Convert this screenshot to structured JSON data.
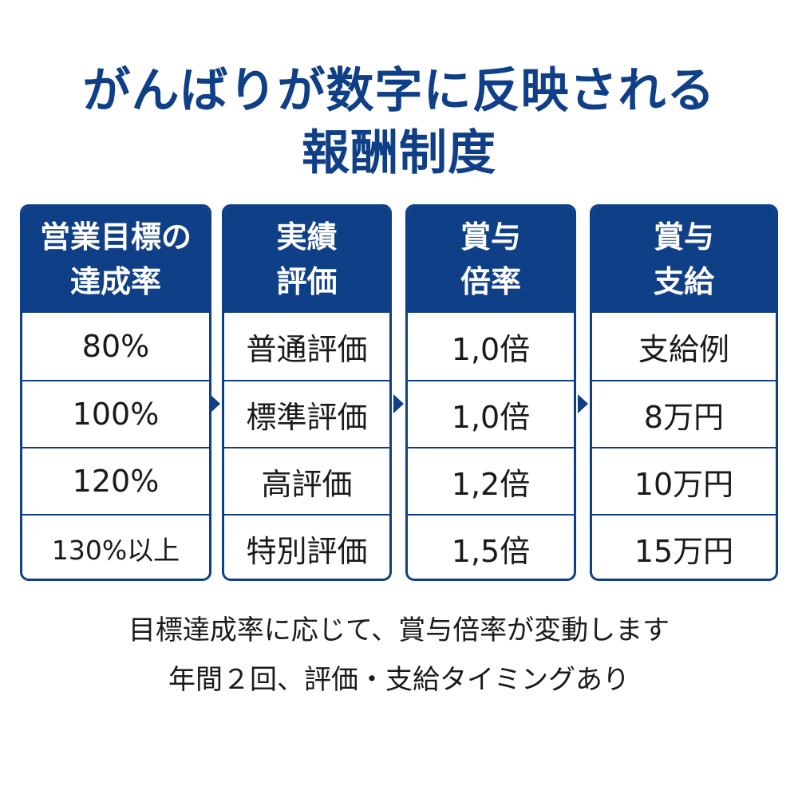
{
  "title": {
    "line1": "がんばりが数字に反映される",
    "line2": "報酬制度"
  },
  "columns": [
    {
      "header": "営業目標の\n達成率",
      "cells": [
        "80%",
        "100%",
        "120%",
        "130%以上"
      ]
    },
    {
      "header": "実績\n評価",
      "cells": [
        "普通評価",
        "標準評価",
        "高評価",
        "特別評価"
      ]
    },
    {
      "header": "賞与\n倍率",
      "cells": [
        "1,0倍",
        "1,0倍",
        "1,2倍",
        "1,5倍"
      ]
    },
    {
      "header": "賞与\n支給",
      "cells": [
        "支給例",
        "8万円",
        "10万円",
        "15万円"
      ]
    }
  ],
  "notes": [
    "目標達成率に応じて、賞与倍率が変動します",
    "年間２回、評価・支給タイミングあり"
  ],
  "colors": {
    "brand_blue": "#0f3f86",
    "text": "#1a1a1a",
    "background": "#ffffff"
  }
}
